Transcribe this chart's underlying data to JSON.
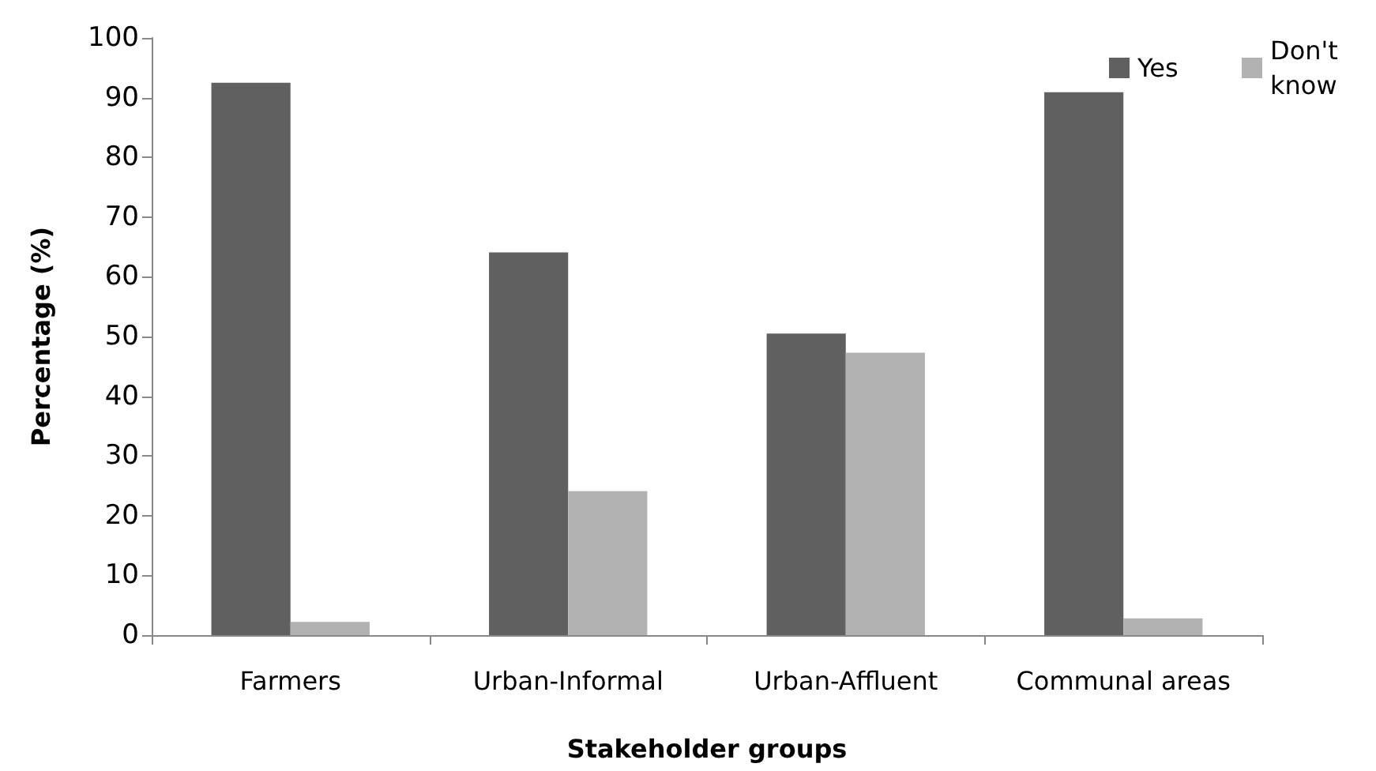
{
  "chart_data": {
    "type": "bar",
    "xlabel": "Stakeholder groups",
    "ylabel": "Percentage (%)",
    "categories": [
      "Farmers",
      "Urban-Informal",
      "Urban-Affluent",
      "Communal areas"
    ],
    "series": [
      {
        "name": "Yes",
        "color": "#606060",
        "values": [
          92.5,
          64.1,
          50.5,
          90.9
        ]
      },
      {
        "name": "Don't know",
        "color": "#b2b2b2",
        "values": [
          2.2,
          24.1,
          47.3,
          2.8
        ]
      }
    ],
    "ylim": [
      0,
      100
    ],
    "yticks": [
      0,
      10,
      20,
      30,
      40,
      50,
      60,
      70,
      80,
      90,
      100
    ],
    "grid": false,
    "legend": "top right"
  }
}
